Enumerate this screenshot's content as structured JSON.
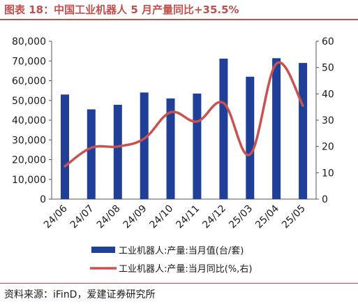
{
  "title": "图表 18：中国工业机器人 5 月产量同比+35.5%",
  "source": "资料来源：iFinD，爱建证券研究所",
  "colors": {
    "bar": "#1f3f99",
    "line": "#c9524f",
    "rule": "#c0504d"
  },
  "chart_data": {
    "type": "bar+line",
    "categories": [
      "24/06",
      "24/07",
      "24/08",
      "24/09",
      "24/10",
      "24/11",
      "24/12",
      "25/03",
      "25/04",
      "25/05"
    ],
    "series": [
      {
        "name": "工业机器人:产量:当月值(台/套)",
        "type": "bar",
        "axis": "left",
        "values": [
          53000,
          45500,
          47800,
          54000,
          51000,
          53500,
          71200,
          62000,
          71400,
          69000
        ]
      },
      {
        "name": "工业机器人:产量:当月同比(%,右)",
        "type": "line",
        "axis": "right",
        "values": [
          12.5,
          19.5,
          20.0,
          23.0,
          33.0,
          29.5,
          36.5,
          17.0,
          51.5,
          35.5
        ]
      }
    ],
    "y_left": {
      "min": 0,
      "max": 80000,
      "ticks": [
        "0",
        "10,000",
        "20,000",
        "30,000",
        "40,000",
        "50,000",
        "60,000",
        "70,000",
        "80,000"
      ]
    },
    "y_right": {
      "min": 0,
      "max": 60,
      "ticks": [
        "0",
        "10",
        "20",
        "30",
        "40",
        "50",
        "60"
      ]
    },
    "grid": false,
    "legend_position": "bottom"
  }
}
